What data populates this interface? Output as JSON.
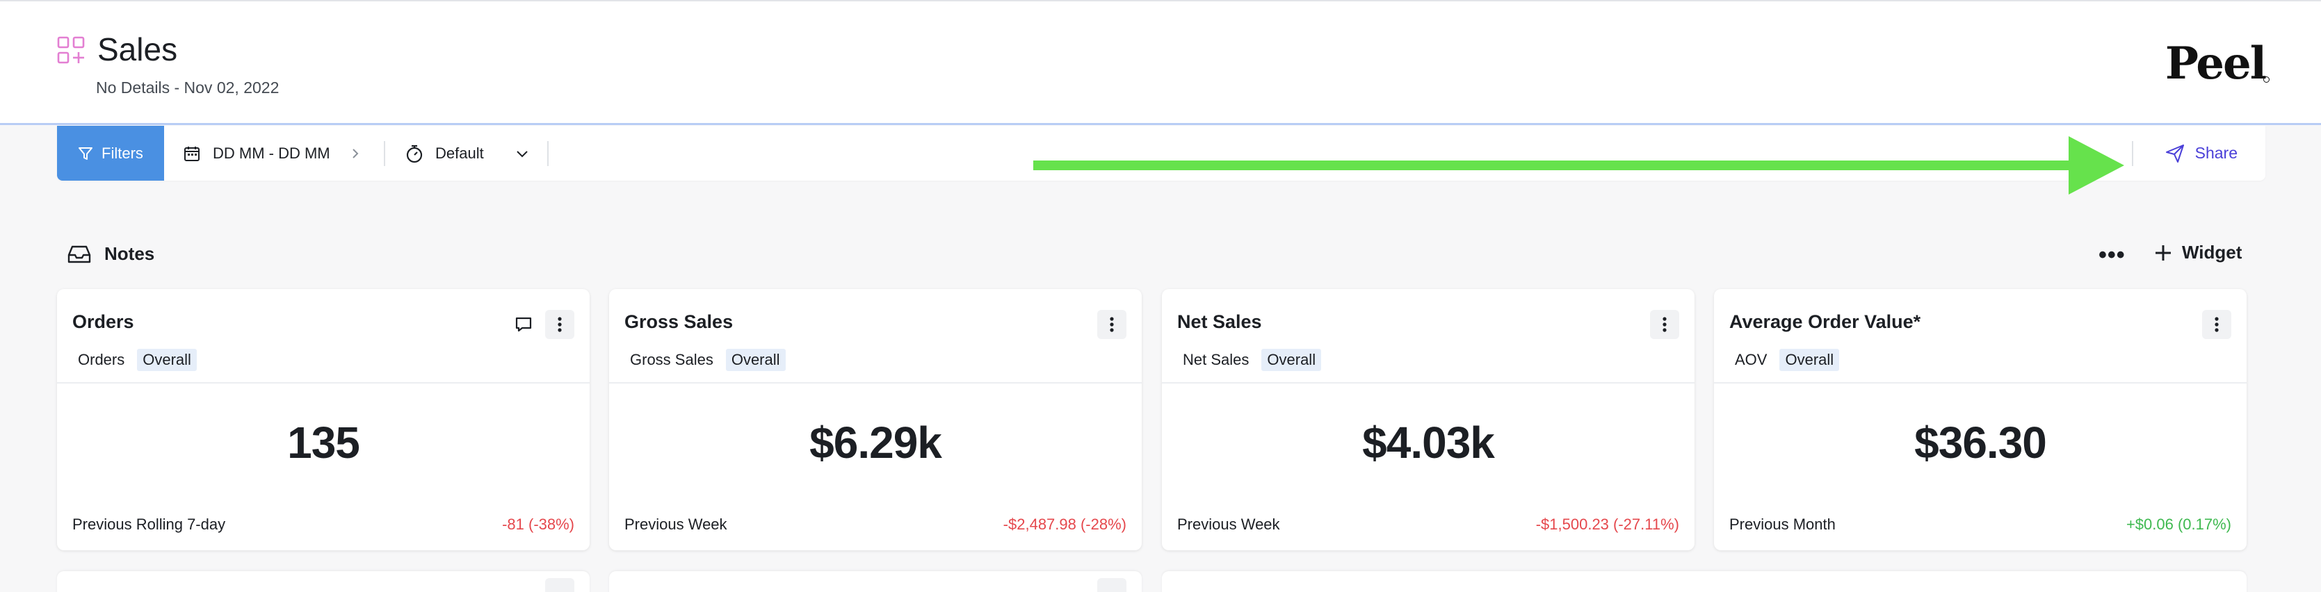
{
  "header": {
    "title": "Sales",
    "subtitle": "No Details - Nov 02, 2022",
    "brand": "Peel"
  },
  "toolbar": {
    "filters_label": "Filters",
    "date_range": "DD MM - DD MM",
    "default_label": "Default",
    "share_label": "Share"
  },
  "notes": {
    "label": "Notes",
    "more_label": "•••",
    "widget_label": "Widget"
  },
  "cards": [
    {
      "title": "Orders",
      "tags": [
        "Orders",
        "Overall"
      ],
      "value": "135",
      "comparison": "Previous Rolling 7-day",
      "delta": "-81 (-38%)",
      "trend": "negative"
    },
    {
      "title": "Gross Sales",
      "tags": [
        "Gross Sales",
        "Overall"
      ],
      "value": "$6.29k",
      "comparison": "Previous Week",
      "delta": "-$2,487.98 (-28%)",
      "trend": "negative"
    },
    {
      "title": "Net Sales",
      "tags": [
        "Net Sales",
        "Overall"
      ],
      "value": "$4.03k",
      "comparison": "Previous Week",
      "delta": "-$1,500.23 (-27.11%)",
      "trend": "negative"
    },
    {
      "title": "Average Order Value*",
      "tags": [
        "AOV",
        "Overall"
      ],
      "value": "$36.30",
      "comparison": "Previous Month",
      "delta": "+$0.06 (0.17%)",
      "trend": "positive"
    }
  ],
  "colors": {
    "accent": "#4a90e2",
    "share": "#4a3fd8",
    "negative": "#e5484d",
    "positive": "#3fb950",
    "annotation_arrow": "#66e24c",
    "header_icon": "#e37fd2"
  }
}
